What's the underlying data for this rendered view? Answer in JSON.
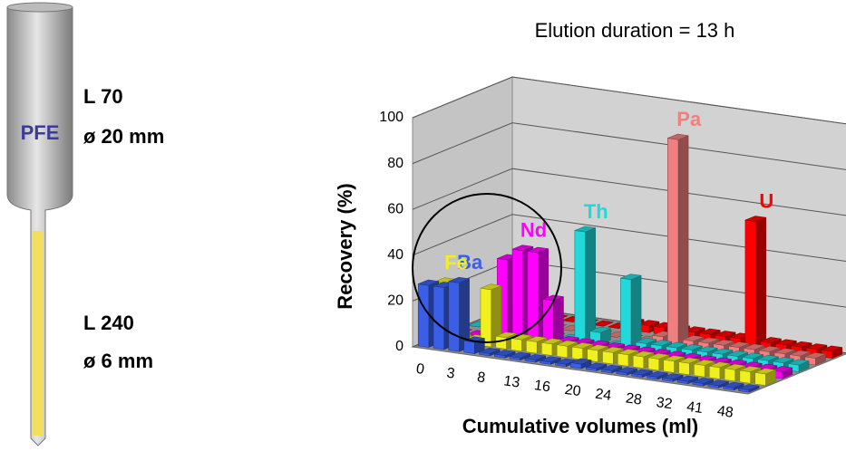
{
  "diagram": {
    "resin_label": "PFE",
    "upper_length": "L 70",
    "upper_diameter": "ø 20 mm",
    "lower_length": "L 240",
    "lower_diameter": "ø 6 mm"
  },
  "chart_data": {
    "type": "bar3d",
    "title": "Elution duration = 13 h",
    "y_label": "Recovery  (%)",
    "x_label": "Cumulative volumes (ml)",
    "categories": [
      "0",
      null,
      "3",
      null,
      "8",
      null,
      "13",
      null,
      "16",
      null,
      "20",
      null,
      "24",
      null,
      "28",
      null,
      "32",
      null,
      "41",
      null,
      "48",
      null
    ],
    "ylim": [
      0,
      100
    ],
    "yticks": [
      0,
      20,
      40,
      60,
      80,
      100
    ],
    "series": [
      {
        "name": "Ba",
        "color": "#3a5fe6",
        "values": [
          27,
          27,
          30,
          5,
          1,
          1,
          1,
          1,
          1,
          1,
          2,
          1,
          1,
          1,
          1,
          1,
          1,
          1,
          1,
          1,
          1,
          1
        ]
      },
      {
        "name": "Fe",
        "color": "#f0f01e",
        "values": [
          25,
          2,
          2,
          25,
          5,
          5,
          5,
          5,
          5,
          5,
          5,
          5,
          5,
          5,
          5,
          5,
          5,
          5,
          5,
          5,
          5,
          5
        ]
      },
      {
        "name": "Nd",
        "color": "#ff00ff",
        "values": [
          0,
          0,
          0,
          35,
          40,
          40,
          20,
          3,
          3,
          3,
          3,
          3,
          3,
          3,
          3,
          3,
          3,
          3,
          3,
          3,
          3,
          3
        ]
      },
      {
        "name": "Th",
        "color": "#22d8d8",
        "values": [
          0,
          0,
          0,
          0,
          0,
          0,
          0,
          48,
          5,
          0,
          30,
          3,
          3,
          3,
          3,
          3,
          3,
          3,
          3,
          3,
          3,
          3
        ]
      },
      {
        "name": "Pa",
        "color": "#f08080",
        "values": [
          0,
          0,
          0,
          0,
          0,
          0,
          0,
          0,
          0,
          0,
          0,
          3,
          90,
          3,
          3,
          3,
          3,
          3,
          3,
          3,
          3,
          3
        ]
      },
      {
        "name": "U",
        "color": "#ff0000",
        "values": [
          0,
          0,
          0,
          0,
          0,
          0,
          0,
          0,
          3,
          3,
          3,
          3,
          3,
          3,
          3,
          3,
          55,
          3,
          3,
          3,
          3,
          3
        ]
      }
    ]
  }
}
